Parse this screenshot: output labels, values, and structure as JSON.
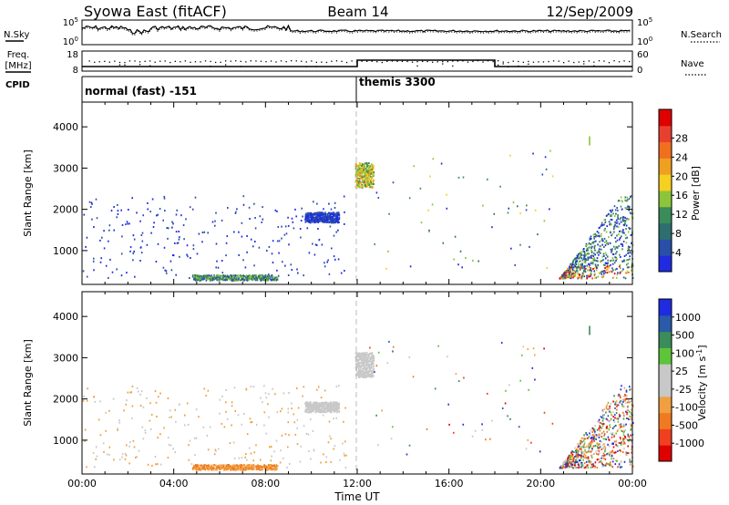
{
  "header": {
    "station": "Syowa East (fitACF)",
    "beam": "Beam 14",
    "date": "12/Sep/2009"
  },
  "strips": {
    "nsky_label": "N.Sky",
    "nsearch_label": "N.Search",
    "nsky_ticks": [
      "10^5",
      "10^0"
    ],
    "nsearch_ticks": [
      "10^5",
      "10^0"
    ],
    "freq_label_1": "Freq.",
    "freq_label_2": "[MHz]",
    "freq_ticks": [
      "18",
      "8"
    ],
    "nave_label": "Nave",
    "nave_ticks": [
      "60",
      "0"
    ],
    "cpid_label": "CPID"
  },
  "modes": [
    {
      "label": "normal (fast) -151",
      "start_hour": 0
    },
    {
      "label": "themis 3300",
      "start_hour": 12
    }
  ],
  "colors": {
    "power": [
      "#1f2be0",
      "#2a4fa8",
      "#2e6e6e",
      "#3a8c5a",
      "#8cc43a",
      "#f5d020",
      "#f0a020",
      "#f07020",
      "#e84030",
      "#e00000"
    ],
    "velocity": [
      "#e00000",
      "#f04020",
      "#f07a20",
      "#f0a040",
      "#c8c8c8",
      "#c8c8c8",
      "#5ec43a",
      "#3a8c5a",
      "#2a5aa8",
      "#1f2be0"
    ]
  },
  "chart_data": [
    {
      "type": "heatmap",
      "title": "Power",
      "xlabel": "",
      "ylabel": "Slant Range [km]",
      "xlim": [
        0,
        24
      ],
      "ylim": [
        180,
        4600
      ],
      "x_ticks": [
        "00:00",
        "04:00",
        "08:00",
        "12:00",
        "16:00",
        "20:00",
        "00:00"
      ],
      "y_ticks": [
        "1000",
        "2000",
        "3000",
        "4000"
      ],
      "colorbar": {
        "label": "Power [dB]",
        "ticks": [
          "4",
          "8",
          "12",
          "16",
          "20",
          "24",
          "28"
        ]
      },
      "regions": [
        {
          "t": [
            4.8,
            8.5
          ],
          "r": [
            250,
            380
          ],
          "level": "mid"
        },
        {
          "t": [
            9.7,
            11.2
          ],
          "r": [
            1650,
            1900
          ],
          "level": "low"
        },
        {
          "t": [
            11.9,
            12.7
          ],
          "r": [
            2500,
            3100
          ],
          "level": "high"
        },
        {
          "t": [
            20.8,
            24
          ],
          "r": [
            300,
            2300
          ],
          "level": "mixed"
        }
      ]
    },
    {
      "type": "heatmap",
      "title": "Velocity",
      "xlabel": "Time UT",
      "ylabel": "Slant Range [km]",
      "xlim": [
        0,
        24
      ],
      "ylim": [
        180,
        4600
      ],
      "x_ticks": [
        "00:00",
        "04:00",
        "08:00",
        "12:00",
        "16:00",
        "20:00",
        "00:00"
      ],
      "y_ticks": [
        "1000",
        "2000",
        "3000",
        "4000"
      ],
      "colorbar": {
        "label": "Velocity [m s^-1]",
        "ticks": [
          "1000",
          "500",
          "100",
          "25",
          "-25",
          "-100",
          "-500",
          "-1000"
        ]
      },
      "regions": [
        {
          "t": [
            4.8,
            8.5
          ],
          "r": [
            250,
            380
          ],
          "level": "away"
        },
        {
          "t": [
            9.7,
            11.2
          ],
          "r": [
            1650,
            1900
          ],
          "level": "ground"
        },
        {
          "t": [
            11.9,
            12.7
          ],
          "r": [
            2500,
            3100
          ],
          "level": "ground"
        },
        {
          "t": [
            20.8,
            24
          ],
          "r": [
            300,
            2300
          ],
          "level": "mixed"
        }
      ]
    }
  ]
}
